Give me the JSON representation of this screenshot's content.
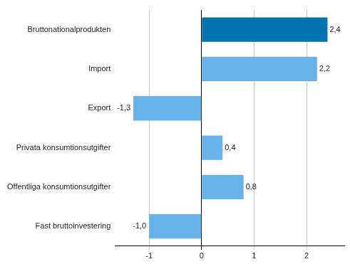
{
  "chart_data": {
    "type": "bar",
    "orientation": "horizontal",
    "categories": [
      "Bruttonationalprodukten",
      "Import",
      "Export",
      "Privata konsumtionsutgifter",
      "Offentliga konsumtionsutgifter",
      "Fast bruttoinvestering"
    ],
    "values": [
      2.4,
      2.2,
      -1.3,
      0.4,
      0.8,
      -1.0
    ],
    "value_labels": [
      "2,4",
      "2,2",
      "-1,3",
      "0,4",
      "0,8",
      "-1,0"
    ],
    "colors": [
      "#0073b0",
      "#65b3e8",
      "#65b3e8",
      "#65b3e8",
      "#65b3e8",
      "#65b3e8"
    ],
    "data_labels": true,
    "xlim": [
      -1.65,
      2.72
    ],
    "xticks": [
      -1,
      0,
      1,
      2
    ],
    "grid": true
  }
}
